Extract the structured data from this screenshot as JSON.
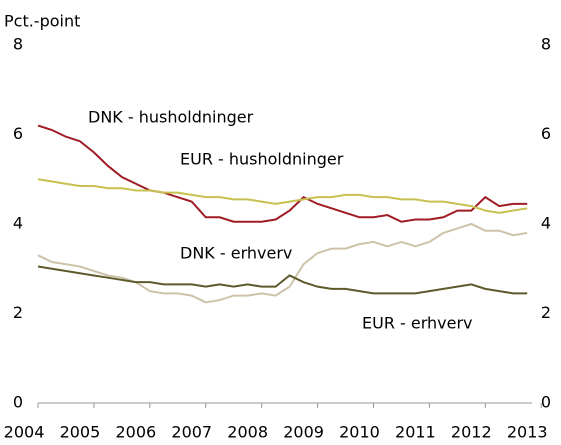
{
  "chart_data": {
    "type": "line",
    "y_label": "Pct.-point",
    "x": [
      2004.25,
      2004.5,
      2004.75,
      2005,
      2005.25,
      2005.5,
      2005.75,
      2006,
      2006.25,
      2006.5,
      2006.75,
      2007,
      2007.25,
      2007.5,
      2007.75,
      2008,
      2008.25,
      2008.5,
      2008.75,
      2009,
      2009.25,
      2009.5,
      2009.75,
      2010,
      2010.25,
      2010.5,
      2010.75,
      2011,
      2011.25,
      2011.5,
      2011.75,
      2012,
      2012.25,
      2012.5,
      2012.75,
      2013
    ],
    "xlim": [
      2004.25,
      2013.05
    ],
    "xticks": [
      2004,
      2005,
      2006,
      2007,
      2008,
      2009,
      2010,
      2011,
      2012,
      2013
    ],
    "ylim": [
      0,
      8
    ],
    "yticks": [
      0,
      2,
      4,
      6,
      8
    ],
    "series": [
      {
        "name": "DNK - husholdninger",
        "color": "#a01c24",
        "values": [
          6.2,
          6.1,
          5.95,
          5.85,
          5.6,
          5.3,
          5.05,
          4.9,
          4.75,
          4.7,
          4.6,
          4.5,
          4.15,
          4.15,
          4.05,
          4.05,
          4.05,
          4.1,
          4.3,
          4.6,
          4.45,
          4.35,
          4.25,
          4.15,
          4.15,
          4.2,
          4.05,
          4.1,
          4.1,
          4.15,
          4.3,
          4.3,
          4.6,
          4.4,
          4.45,
          4.45
        ]
      },
      {
        "name": "EUR - husholdninger",
        "color": "#c8c050",
        "values": [
          5.0,
          4.95,
          4.9,
          4.85,
          4.85,
          4.8,
          4.8,
          4.75,
          4.75,
          4.7,
          4.7,
          4.65,
          4.6,
          4.6,
          4.55,
          4.55,
          4.5,
          4.45,
          4.5,
          4.55,
          4.6,
          4.6,
          4.65,
          4.65,
          4.6,
          4.6,
          4.55,
          4.55,
          4.5,
          4.5,
          4.45,
          4.4,
          4.3,
          4.25,
          4.3,
          4.35
        ]
      },
      {
        "name": "DNK - erhverv",
        "color": "#cdc3a8",
        "values": [
          3.3,
          3.15,
          3.1,
          3.05,
          2.95,
          2.85,
          2.8,
          2.7,
          2.5,
          2.45,
          2.45,
          2.4,
          2.25,
          2.3,
          2.4,
          2.4,
          2.45,
          2.4,
          2.6,
          3.1,
          3.35,
          3.45,
          3.45,
          3.55,
          3.6,
          3.5,
          3.6,
          3.5,
          3.6,
          3.8,
          3.9,
          4.0,
          3.85,
          3.85,
          3.75,
          3.8
        ]
      },
      {
        "name": "EUR - erhverv",
        "color": "#5e5a2c",
        "values": [
          3.05,
          3.0,
          2.95,
          2.9,
          2.85,
          2.8,
          2.75,
          2.7,
          2.7,
          2.65,
          2.65,
          2.65,
          2.6,
          2.65,
          2.6,
          2.65,
          2.6,
          2.6,
          2.85,
          2.7,
          2.6,
          2.55,
          2.55,
          2.5,
          2.45,
          2.45,
          2.45,
          2.45,
          2.5,
          2.55,
          2.6,
          2.65,
          2.55,
          2.5,
          2.45,
          2.45
        ]
      }
    ]
  }
}
